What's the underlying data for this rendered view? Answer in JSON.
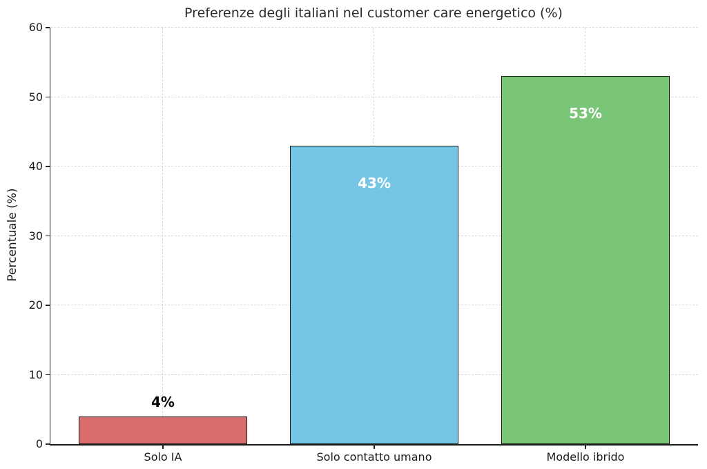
{
  "figure": {
    "background": "#ffffff"
  },
  "chart_data": {
    "type": "bar",
    "title": "Preferenze degli italiani nel customer care energetico (%)",
    "xlabel": "",
    "ylabel": "Percentuale (%)",
    "categories": [
      "Solo IA",
      "Solo contatto umano",
      "Modello ibrido"
    ],
    "values": [
      4,
      43,
      53
    ],
    "bar_labels": [
      "4%",
      "43%",
      "53%"
    ],
    "bar_colors": [
      "#d96d6d",
      "#74c6e4",
      "#79c679"
    ],
    "bar_edge_color": "#1a1a1a",
    "value_label_colors": [
      "#000000",
      "#ffffff",
      "#ffffff"
    ],
    "value_label_inside": [
      false,
      true,
      true
    ],
    "ylim": [
      0,
      60
    ],
    "yticks": [
      0,
      10,
      20,
      30,
      40,
      50,
      60
    ],
    "grid": {
      "show": true,
      "style": "dashed",
      "color": "#d9d9d9",
      "axes": "both"
    },
    "legend": null
  }
}
